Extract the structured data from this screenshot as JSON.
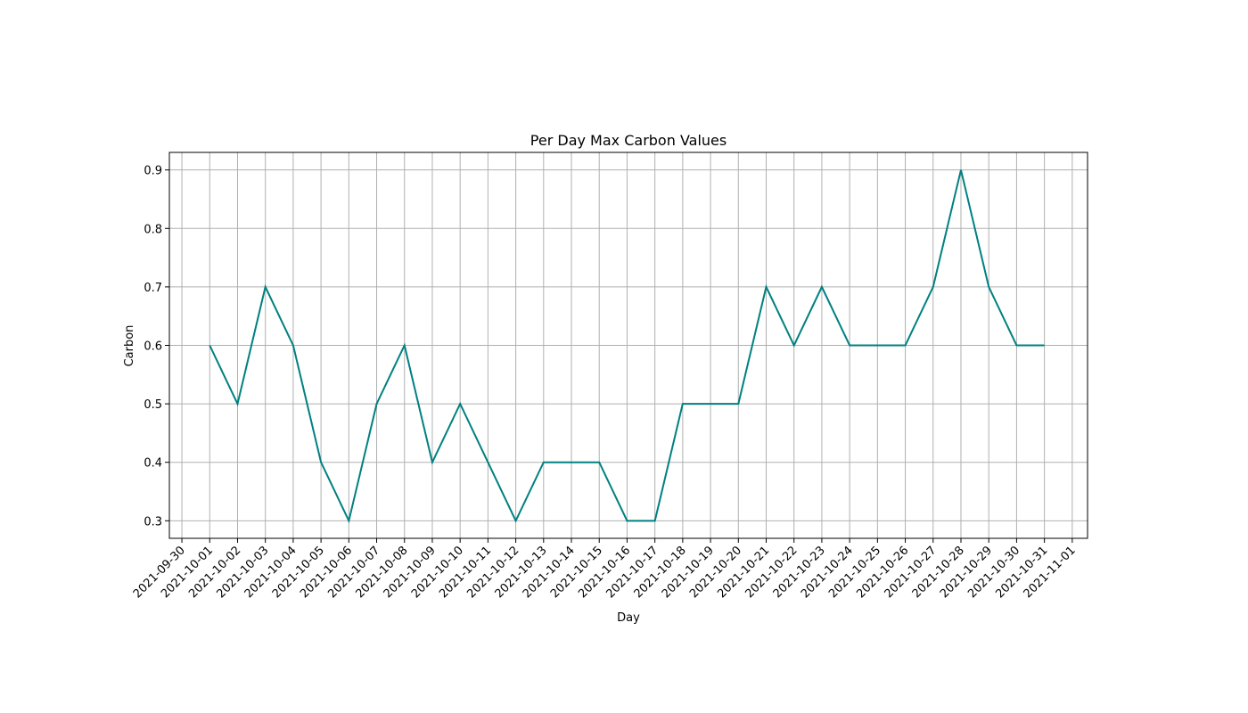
{
  "chart_data": {
    "type": "line",
    "title": "Per Day Max Carbon Values",
    "xlabel": "Day",
    "ylabel": "Carbon",
    "x_ticks": [
      "2021-09-30",
      "2021-10-01",
      "2021-10-02",
      "2021-10-03",
      "2021-10-04",
      "2021-10-05",
      "2021-10-06",
      "2021-10-07",
      "2021-10-08",
      "2021-10-09",
      "2021-10-10",
      "2021-10-11",
      "2021-10-12",
      "2021-10-13",
      "2021-10-14",
      "2021-10-15",
      "2021-10-16",
      "2021-10-17",
      "2021-10-18",
      "2021-10-19",
      "2021-10-20",
      "2021-10-21",
      "2021-10-22",
      "2021-10-23",
      "2021-10-24",
      "2021-10-25",
      "2021-10-26",
      "2021-10-27",
      "2021-10-28",
      "2021-10-29",
      "2021-10-30",
      "2021-10-31",
      "2021-11-01"
    ],
    "y_ticks": [
      "0.3",
      "0.4",
      "0.5",
      "0.6",
      "0.7",
      "0.8",
      "0.9"
    ],
    "xlim": [
      "2021-09-29",
      "2021-11-01"
    ],
    "ylim": [
      0.27,
      0.93
    ],
    "grid": true,
    "series": [
      {
        "color": "#008080",
        "x": [
          "2021-10-01",
          "2021-10-02",
          "2021-10-03",
          "2021-10-04",
          "2021-10-05",
          "2021-10-06",
          "2021-10-07",
          "2021-10-08",
          "2021-10-09",
          "2021-10-10",
          "2021-10-11",
          "2021-10-12",
          "2021-10-13",
          "2021-10-14",
          "2021-10-15",
          "2021-10-16",
          "2021-10-17",
          "2021-10-18",
          "2021-10-19",
          "2021-10-20",
          "2021-10-21",
          "2021-10-22",
          "2021-10-23",
          "2021-10-24",
          "2021-10-25",
          "2021-10-26",
          "2021-10-27",
          "2021-10-28",
          "2021-10-29",
          "2021-10-30",
          "2021-10-31"
        ],
        "values": [
          0.6,
          0.5,
          0.7,
          0.6,
          0.4,
          0.3,
          0.5,
          0.6,
          0.4,
          0.5,
          0.4,
          0.3,
          0.4,
          0.4,
          0.4,
          0.3,
          0.3,
          0.5,
          0.5,
          0.5,
          0.7,
          0.6,
          0.7,
          0.6,
          0.6,
          0.6,
          0.7,
          0.9,
          0.7,
          0.6,
          0.6
        ]
      }
    ]
  }
}
